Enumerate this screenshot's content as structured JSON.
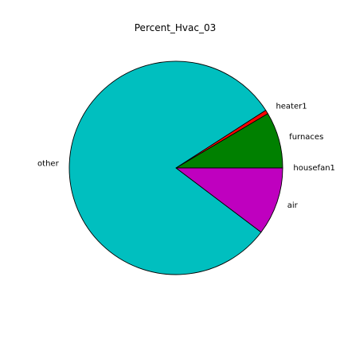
{
  "chart_data": {
    "type": "pie",
    "title": "Percent_Hvac_03",
    "start_angle_deg": 0,
    "direction": "counterclockwise",
    "slices": [
      {
        "label": "housefan1",
        "value": 0.0,
        "color": "#0000ff"
      },
      {
        "label": "furnaces",
        "value": 8.5,
        "color": "#008000"
      },
      {
        "label": "heater1",
        "value": 0.6,
        "color": "#ff0000"
      },
      {
        "label": "other",
        "value": 80.6,
        "color": "#00bfbf"
      },
      {
        "label": "air",
        "value": 10.3,
        "color": "#bf00bf"
      }
    ]
  }
}
